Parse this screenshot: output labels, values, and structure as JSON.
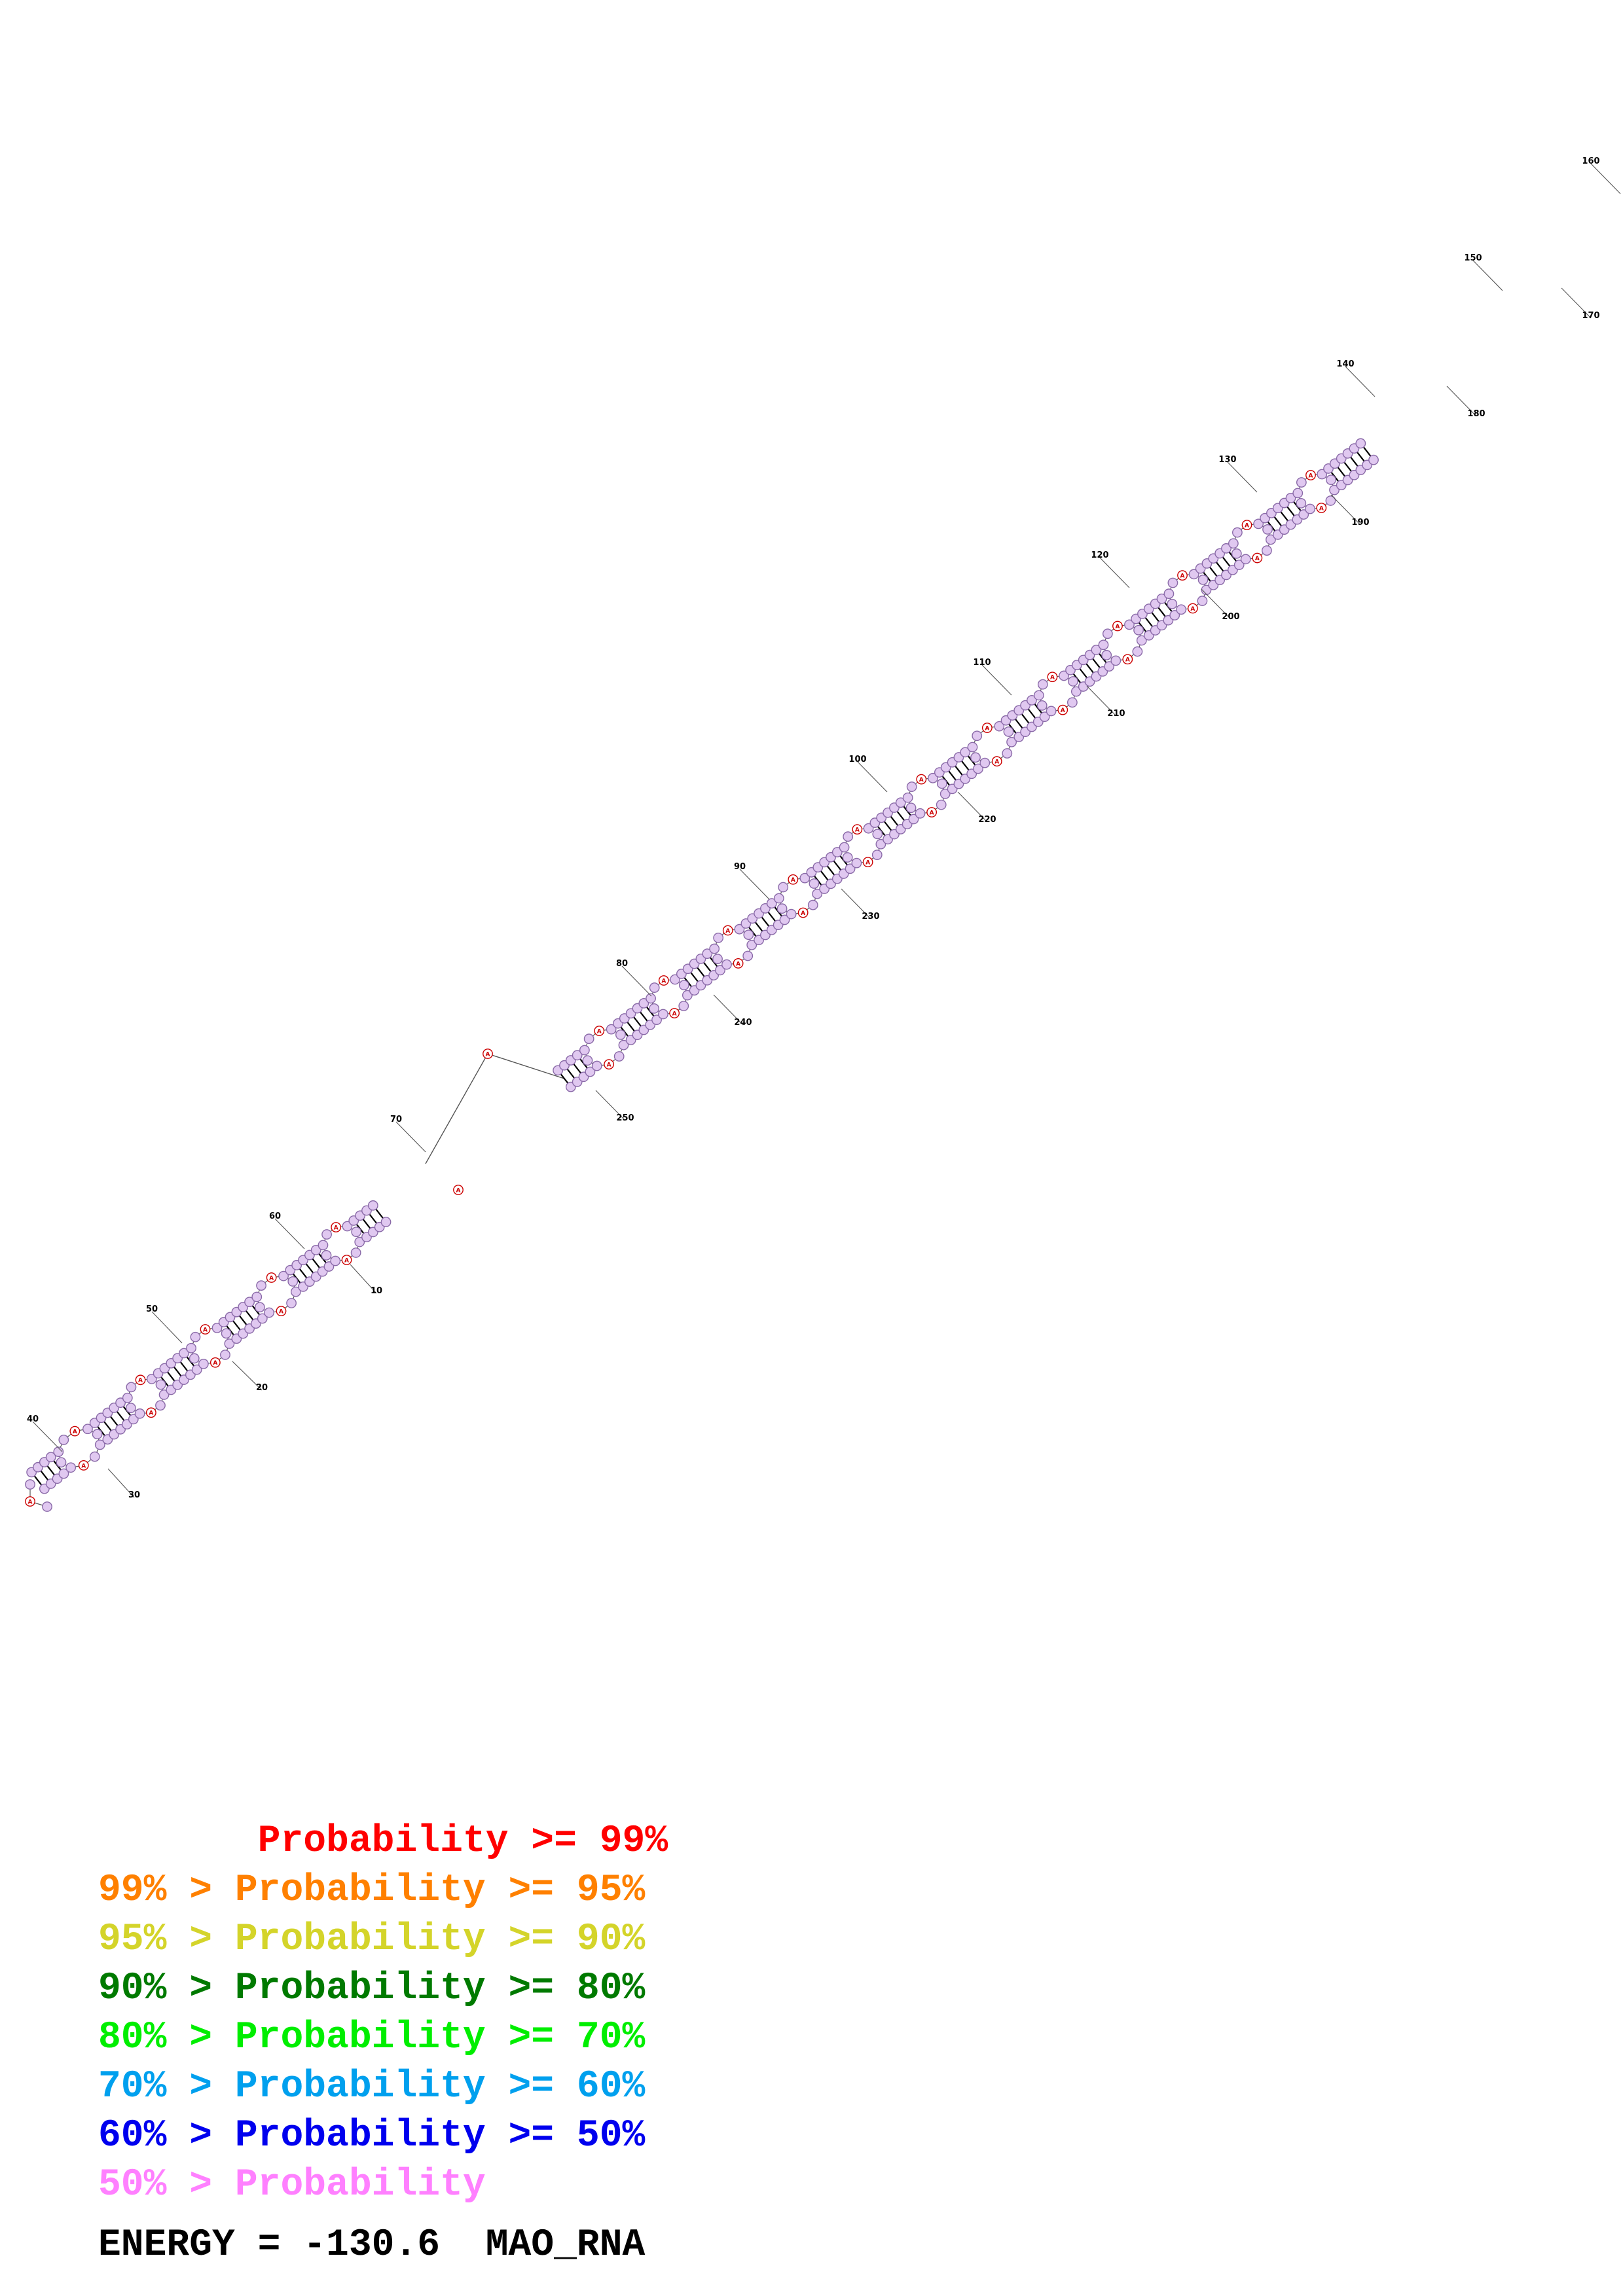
{
  "structure": {
    "name": "MAO_RNA",
    "position_labels": [
      "10",
      "20",
      "30",
      "40",
      "50",
      "60",
      "70",
      "80",
      "90",
      "100",
      "110",
      "120",
      "130",
      "140",
      "150",
      "160",
      "170",
      "180",
      "190",
      "200",
      "210",
      "220",
      "230",
      "240",
      "250"
    ],
    "base_label": "A",
    "colors": {
      "paired_fill": "#e0c8f0",
      "paired_stroke": "#8a6aa8",
      "unpaired_fill": "#ffffff",
      "unpaired_stroke": "#cc0000",
      "unpaired_text": "#cc0000",
      "backbone": "#555555",
      "bond": "#000000",
      "label_text": "#000000"
    }
  },
  "legend": {
    "lines": [
      {
        "text": "       Probability >= 99%",
        "color": "#ff0000"
      },
      {
        "text": "99% > Probability >= 95%",
        "color": "#ff8000"
      },
      {
        "text": "95% > Probability >= 90%",
        "color": "#d4d42a"
      },
      {
        "text": "90% > Probability >= 80%",
        "color": "#007a00"
      },
      {
        "text": "80% > Probability >= 70%",
        "color": "#00ee00"
      },
      {
        "text": "70% > Probability >= 60%",
        "color": "#00a0ee"
      },
      {
        "text": "60% > Probability >= 50%",
        "color": "#0000ee"
      },
      {
        "text": "50% > Probability",
        "color": "#ff80ff"
      }
    ],
    "energy": "ENERGY = -130.6  MAO_RNA"
  }
}
